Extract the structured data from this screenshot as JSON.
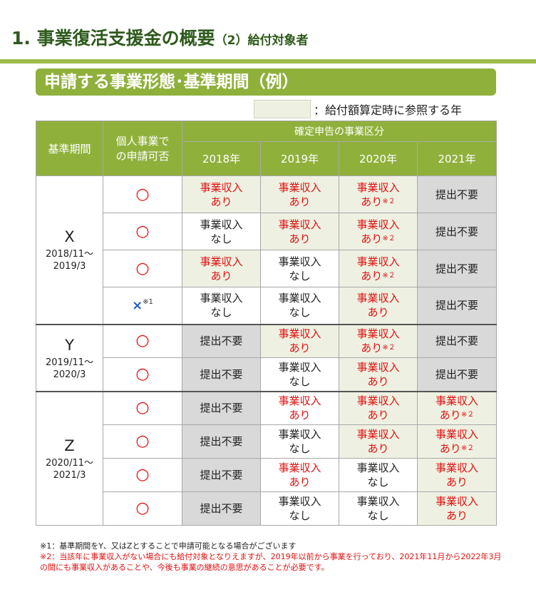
{
  "header": {
    "title": "1. 事業復活支援金の概要",
    "subtitle": "（2）給付対象者",
    "section_title": "申請する事業形態･基準期間（例）",
    "legend_text": "：給付額算定時に参照する年"
  },
  "table": {
    "col_period": "基準期間",
    "col_individual": [
      "個人事業で",
      "の申請可否"
    ],
    "col_group": "確定申告の事業区分",
    "years": [
      "2018年",
      "2019年",
      "2020年",
      "2021年"
    ],
    "periods": [
      {
        "letter": "X",
        "range": [
          "2018/11～",
          "2019/3"
        ]
      },
      {
        "letter": "Y",
        "range": [
          "2019/11～",
          "2020/3"
        ]
      },
      {
        "letter": "Z",
        "range": [
          "2020/11～",
          "2021/3"
        ]
      }
    ],
    "circle": "○",
    "cross": "×",
    "cross_mark": "※1",
    "texts": {
      "income_yes": [
        "事業収入",
        "あり"
      ],
      "income_no": [
        "事業収入",
        "なし"
      ],
      "not_required": "提出不要",
      "mark2": "※２"
    }
  },
  "notes": {
    "note1": "※1：基準期間をY、又はZとすることで申請可能となる場合がございます",
    "note2": "※2：当該年に事業収入がない場合にも給付対象となりえますが、2019年以前から事業を行っており、2021年11月から2022年3月の間にも事業収入があることや、今後も事業の継続の意思があることが必要です。"
  }
}
